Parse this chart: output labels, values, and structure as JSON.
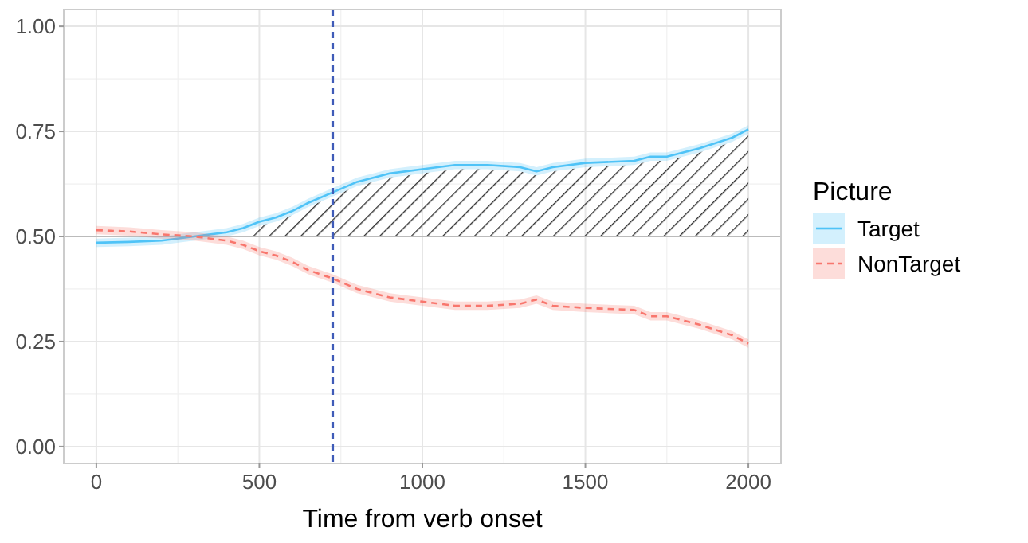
{
  "chart_data": {
    "type": "line",
    "xlabel": "Time from verb onset",
    "legend_title": "Picture",
    "legend": "right",
    "grid": true,
    "xlim": [
      -100,
      2100
    ],
    "ylim": [
      -0.04,
      1.04
    ],
    "xticks": [
      0,
      500,
      1000,
      1500,
      2000
    ],
    "yticks": [
      {
        "value": 0,
        "label": "0.00"
      },
      {
        "value": 0.25,
        "label": "0.25"
      },
      {
        "value": 0.5,
        "label": "0.50"
      },
      {
        "value": 0.75,
        "label": "0.75"
      },
      {
        "value": 1,
        "label": "1.00"
      }
    ],
    "x": [
      0,
      100,
      200,
      300,
      400,
      450,
      500,
      550,
      600,
      650,
      725,
      800,
      900,
      1000,
      1100,
      1200,
      1300,
      1350,
      1400,
      1500,
      1650,
      1700,
      1750,
      1850,
      1950,
      2000
    ],
    "series": [
      {
        "type": "area",
        "color": "#333333",
        "x": [
          450,
          500,
          550,
          600,
          650,
          725,
          800,
          900,
          1000,
          1100,
          1200,
          1300,
          1350,
          1400,
          1500,
          1650,
          1700,
          1750,
          1850,
          1950,
          2000
        ],
        "values": [
          0.51,
          0.525,
          0.535,
          0.55,
          0.57,
          0.595,
          0.62,
          0.64,
          0.65,
          0.66,
          0.66,
          0.655,
          0.645,
          0.655,
          0.665,
          0.67,
          0.68,
          0.68,
          0.7,
          0.725,
          0.74
        ]
      },
      {
        "name": "Target",
        "color": "#4fc3f7",
        "line_style": "solid",
        "values": [
          0.485,
          0.487,
          0.49,
          0.5,
          0.51,
          0.52,
          0.535,
          0.545,
          0.56,
          0.58,
          0.605,
          0.63,
          0.65,
          0.66,
          0.67,
          0.67,
          0.665,
          0.655,
          0.665,
          0.675,
          0.68,
          0.69,
          0.69,
          0.71,
          0.735,
          0.755
        ],
        "lower": [
          0.475,
          0.477,
          0.48,
          0.49,
          0.5,
          0.51,
          0.525,
          0.535,
          0.55,
          0.57,
          0.595,
          0.62,
          0.64,
          0.65,
          0.66,
          0.66,
          0.655,
          0.645,
          0.655,
          0.665,
          0.67,
          0.68,
          0.68,
          0.7,
          0.725,
          0.745
        ],
        "upper": [
          0.495,
          0.497,
          0.5,
          0.51,
          0.52,
          0.53,
          0.545,
          0.555,
          0.57,
          0.59,
          0.615,
          0.64,
          0.66,
          0.67,
          0.68,
          0.68,
          0.675,
          0.665,
          0.675,
          0.685,
          0.69,
          0.7,
          0.7,
          0.72,
          0.745,
          0.765
        ]
      },
      {
        "name": "NonTarget",
        "color": "#f8766d",
        "line_style": "dashed",
        "values": [
          0.515,
          0.512,
          0.505,
          0.5,
          0.49,
          0.48,
          0.465,
          0.455,
          0.44,
          0.42,
          0.4,
          0.375,
          0.355,
          0.345,
          0.335,
          0.335,
          0.34,
          0.35,
          0.335,
          0.33,
          0.325,
          0.31,
          0.31,
          0.29,
          0.265,
          0.245
        ],
        "lower": [
          0.505,
          0.502,
          0.495,
          0.49,
          0.48,
          0.47,
          0.455,
          0.445,
          0.43,
          0.41,
          0.39,
          0.365,
          0.345,
          0.335,
          0.325,
          0.325,
          0.33,
          0.34,
          0.325,
          0.32,
          0.315,
          0.3,
          0.3,
          0.28,
          0.255,
          0.235
        ],
        "upper": [
          0.525,
          0.522,
          0.515,
          0.51,
          0.5,
          0.49,
          0.475,
          0.465,
          0.45,
          0.43,
          0.41,
          0.385,
          0.365,
          0.355,
          0.345,
          0.345,
          0.35,
          0.36,
          0.345,
          0.34,
          0.335,
          0.32,
          0.32,
          0.3,
          0.275,
          0.255
        ]
      }
    ],
    "ref_lines": [
      {
        "axis": "y",
        "value": 0.5,
        "color": "#bbbbbb",
        "line_style": "solid"
      },
      {
        "axis": "x",
        "value": 725,
        "color": "#3f5bb8",
        "line_style": "dashed"
      }
    ]
  }
}
